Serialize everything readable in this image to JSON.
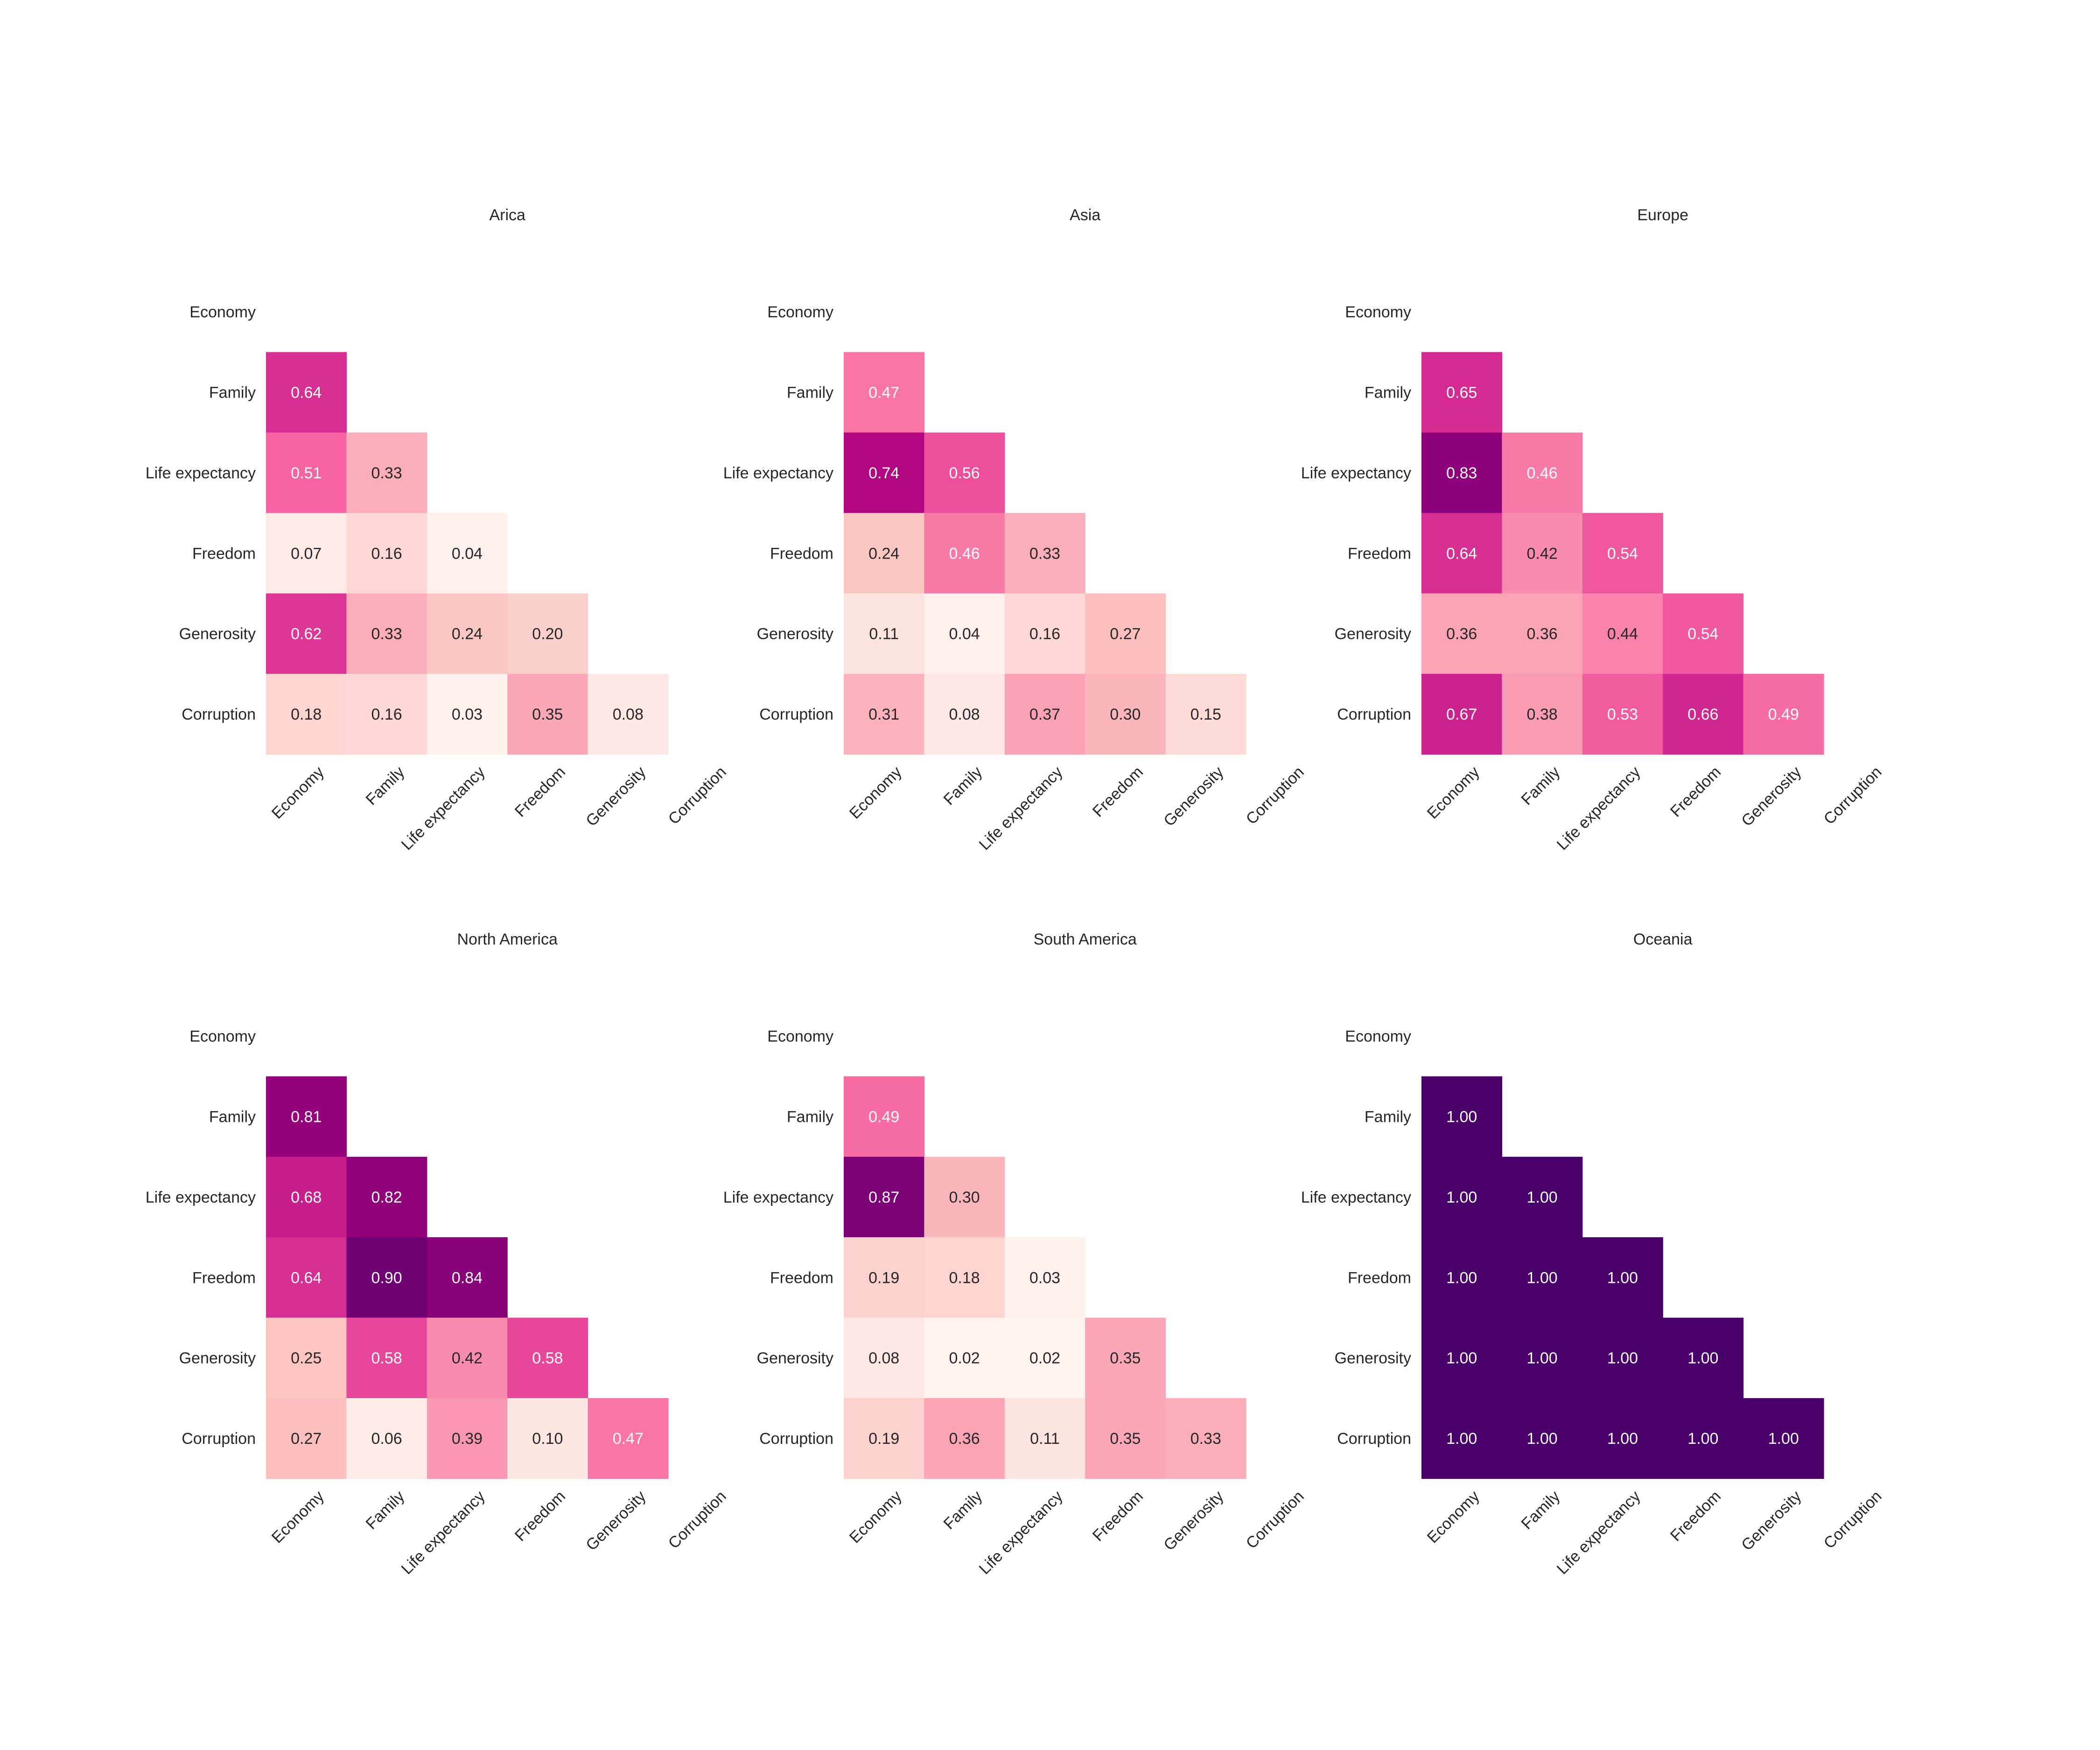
{
  "chart_data": [
    {
      "type": "heatmap",
      "title": "Arica",
      "labels": [
        "Economy",
        "Family",
        "Life expectancy",
        "Freedom",
        "Generosity",
        "Corruption"
      ],
      "mask": "lower-triangle",
      "matrix": [
        [
          0.64
        ],
        [
          0.51,
          0.33
        ],
        [
          0.07,
          0.16,
          0.04
        ],
        [
          0.62,
          0.33,
          0.24,
          0.2
        ],
        [
          0.18,
          0.16,
          0.03,
          0.35,
          0.08
        ]
      ]
    },
    {
      "type": "heatmap",
      "title": "Asia",
      "labels": [
        "Economy",
        "Family",
        "Life expectancy",
        "Freedom",
        "Generosity",
        "Corruption"
      ],
      "mask": "lower-triangle",
      "matrix": [
        [
          0.47
        ],
        [
          0.74,
          0.56
        ],
        [
          0.24,
          0.46,
          0.33
        ],
        [
          0.11,
          0.04,
          0.16,
          0.27
        ],
        [
          0.31,
          0.08,
          0.37,
          0.3,
          0.15
        ]
      ]
    },
    {
      "type": "heatmap",
      "title": "Europe",
      "labels": [
        "Economy",
        "Family",
        "Life expectancy",
        "Freedom",
        "Generosity",
        "Corruption"
      ],
      "mask": "lower-triangle",
      "matrix": [
        [
          0.65
        ],
        [
          0.83,
          0.46
        ],
        [
          0.64,
          0.42,
          0.54
        ],
        [
          0.36,
          0.36,
          0.44,
          0.54
        ],
        [
          0.67,
          0.38,
          0.53,
          0.66,
          0.49
        ]
      ]
    },
    {
      "type": "heatmap",
      "title": "North America",
      "labels": [
        "Economy",
        "Family",
        "Life expectancy",
        "Freedom",
        "Generosity",
        "Corruption"
      ],
      "mask": "lower-triangle",
      "matrix": [
        [
          0.81
        ],
        [
          0.68,
          0.82
        ],
        [
          0.64,
          0.9,
          0.84
        ],
        [
          0.25,
          0.58,
          0.42,
          0.58
        ],
        [
          0.27,
          0.06,
          0.39,
          0.1,
          0.47
        ]
      ]
    },
    {
      "type": "heatmap",
      "title": "South America",
      "labels": [
        "Economy",
        "Family",
        "Life expectancy",
        "Freedom",
        "Generosity",
        "Corruption"
      ],
      "mask": "lower-triangle",
      "matrix": [
        [
          0.49
        ],
        [
          0.87,
          0.3
        ],
        [
          0.19,
          0.18,
          0.03
        ],
        [
          0.08,
          0.02,
          0.02,
          0.35
        ],
        [
          0.19,
          0.36,
          0.11,
          0.35,
          0.33
        ]
      ]
    },
    {
      "type": "heatmap",
      "title": "Oceania",
      "labels": [
        "Economy",
        "Family",
        "Life expectancy",
        "Freedom",
        "Generosity",
        "Corruption"
      ],
      "mask": "lower-triangle",
      "matrix": [
        [
          1.0
        ],
        [
          1.0,
          1.0
        ],
        [
          1.0,
          1.0,
          1.0
        ],
        [
          1.0,
          1.0,
          1.0,
          1.0
        ],
        [
          1.0,
          1.0,
          1.0,
          1.0,
          1.0
        ]
      ]
    }
  ],
  "colormap": {
    "name": "RdPu",
    "stops": [
      "#fff7f3",
      "#fde0dd",
      "#fcc5c0",
      "#fa9fb5",
      "#f768a1",
      "#dd3497",
      "#ae017e",
      "#7a0177",
      "#49006a"
    ],
    "vmin": 0,
    "vmax": 1
  }
}
